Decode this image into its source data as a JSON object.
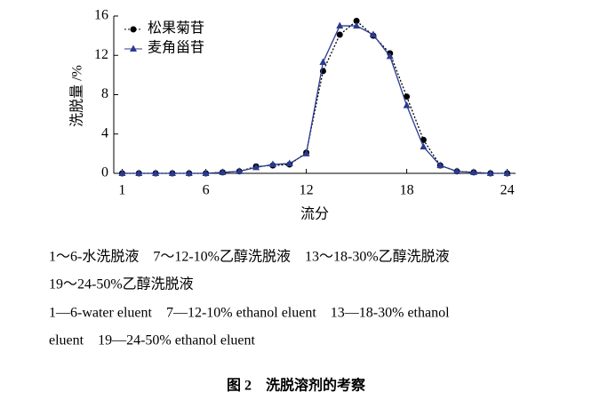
{
  "chart_data": {
    "type": "line",
    "x": [
      1,
      2,
      3,
      4,
      5,
      6,
      7,
      8,
      9,
      10,
      11,
      12,
      13,
      14,
      15,
      16,
      17,
      18,
      19,
      20,
      21,
      22,
      23,
      24
    ],
    "series": [
      {
        "name": "松果菊苷",
        "color": "#000000",
        "marker": "circle",
        "linestyle": "dotted",
        "values": [
          0,
          0,
          0,
          0,
          0,
          0,
          0.1,
          0.2,
          0.7,
          0.8,
          0.9,
          2.1,
          10.4,
          14.1,
          15.5,
          14.0,
          12.2,
          7.8,
          3.4,
          0.8,
          0.2,
          0.1,
          0,
          0
        ]
      },
      {
        "name": "麦角甾苷",
        "color": "#2b3a8f",
        "marker": "triangle",
        "linestyle": "solid",
        "values": [
          0,
          0,
          0,
          0,
          0,
          0,
          0.1,
          0.2,
          0.6,
          0.9,
          1.0,
          2.0,
          11.3,
          15.0,
          15.0,
          14.1,
          11.9,
          6.9,
          2.7,
          0.8,
          0.2,
          0.1,
          0,
          0
        ]
      }
    ],
    "xlabel": "流分",
    "ylabel": "洗脱量 /%",
    "xlim": [
      0.5,
      24.5
    ],
    "xticks": [
      1,
      6,
      12,
      18,
      24
    ],
    "ylim": [
      0,
      16
    ],
    "yticks": [
      0,
      4,
      8,
      12,
      16
    ],
    "legend": "upper left",
    "notes": [
      "1～6-水洗脱液　7～12-10%乙醇洗脱液　13～18-30%乙醇洗脱液",
      "19～24-50%乙醇洗脱液",
      "1—6-water eluent　7—12-10% ethanol eluent　13—18-30% ethanol",
      "eluent　19—24-50% ethanol eluent"
    ],
    "caption": "图 2　洗脱溶剂的考察"
  }
}
